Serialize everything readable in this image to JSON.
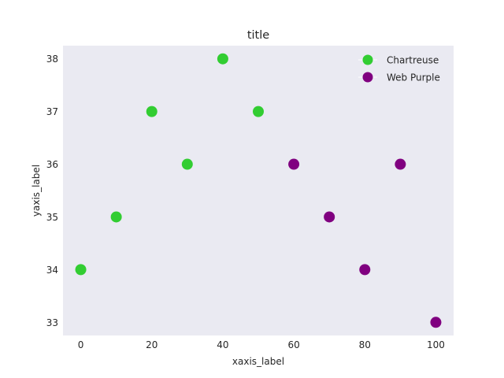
{
  "chart_data": {
    "type": "scatter",
    "title": "title",
    "xlabel": "xaxis_label",
    "ylabel": "yaxis_label",
    "xlim": [
      -5,
      105
    ],
    "ylim": [
      32.75,
      38.25
    ],
    "xticks": [
      0,
      20,
      40,
      60,
      80,
      100
    ],
    "yticks": [
      33,
      34,
      35,
      36,
      37,
      38
    ],
    "grid": false,
    "legend_position": "top-right",
    "background_color": "#eaeaf2",
    "series": [
      {
        "name": "Chartreuse",
        "color": "#32cd32",
        "x": [
          0,
          10,
          20,
          30,
          40,
          50
        ],
        "y": [
          34,
          35,
          37,
          36,
          38,
          37
        ]
      },
      {
        "name": "Web Purple",
        "color": "#800080",
        "x": [
          60,
          70,
          80,
          90,
          100
        ],
        "y": [
          36,
          35,
          34,
          36,
          33
        ]
      }
    ]
  }
}
